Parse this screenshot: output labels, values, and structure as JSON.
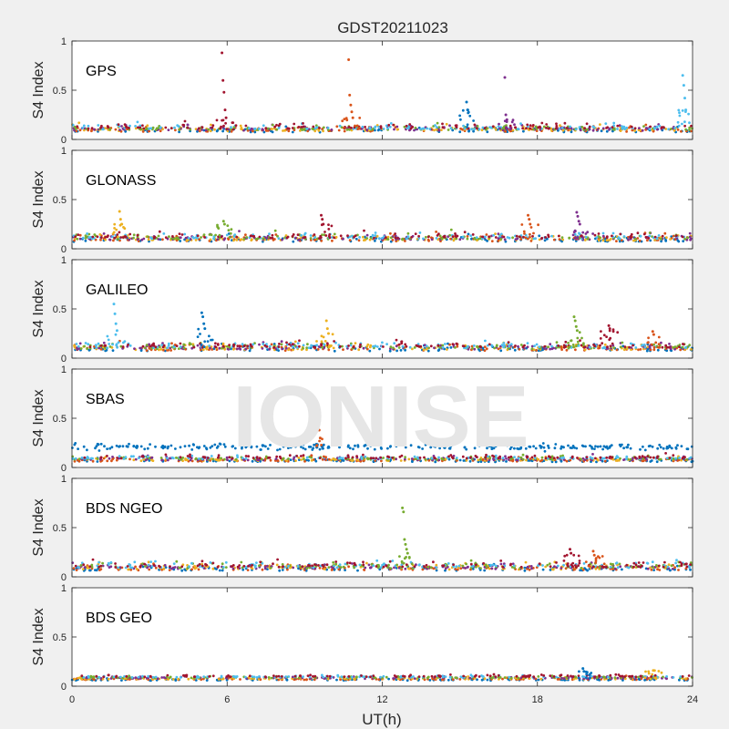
{
  "title": "GDST20211023",
  "watermark": "IONISE",
  "colors": {
    "background": "#f0f0f0",
    "axes_background": "#ffffff",
    "axis_line": "#262626",
    "text": "#262626",
    "watermark": "#e6e6e6"
  },
  "palette": [
    "#0072BD",
    "#D95319",
    "#EDB120",
    "#7E2F8E",
    "#77AC30",
    "#4DBEEE",
    "#A2142F"
  ],
  "chart_data": {
    "type": "scatter",
    "xlabel": "UT(h)",
    "ylabel": "S4 Index",
    "xlim": [
      0,
      24
    ],
    "ylim": [
      0,
      1
    ],
    "xticks": [
      "0",
      "6",
      "12",
      "18",
      "24"
    ],
    "yticks": [
      "0",
      "0.5",
      "1"
    ],
    "grid": false,
    "panels": [
      {
        "label": "GPS",
        "baseline": 0.1,
        "noise": 0.03,
        "spikes": [
          {
            "x": 5.9,
            "values": [
              0.88,
              0.6,
              0.48,
              0.3,
              0.22
            ]
          },
          {
            "x": 10.8,
            "values": [
              0.81,
              0.45,
              0.35,
              0.28,
              0.22
            ]
          },
          {
            "x": 16.8,
            "values": [
              0.63,
              0.25,
              0.2
            ]
          },
          {
            "x": 23.7,
            "values": [
              0.65,
              0.55,
              0.42,
              0.3
            ]
          },
          {
            "x": 15.3,
            "values": [
              0.38,
              0.3
            ]
          }
        ]
      },
      {
        "label": "GLONASS",
        "baseline": 0.1,
        "noise": 0.035,
        "spikes": [
          {
            "x": 1.9,
            "values": [
              0.38,
              0.3,
              0.25
            ]
          },
          {
            "x": 5.9,
            "values": [
              0.28,
              0.25
            ]
          },
          {
            "x": 9.7,
            "values": [
              0.34,
              0.3,
              0.25
            ]
          },
          {
            "x": 17.7,
            "values": [
              0.34,
              0.3,
              0.25
            ]
          },
          {
            "x": 19.6,
            "values": [
              0.37,
              0.33,
              0.28,
              0.25
            ]
          }
        ]
      },
      {
        "label": "GALILEO",
        "baseline": 0.1,
        "noise": 0.035,
        "spikes": [
          {
            "x": 1.7,
            "values": [
              0.55,
              0.45,
              0.35,
              0.28
            ]
          },
          {
            "x": 5.1,
            "values": [
              0.46,
              0.42,
              0.35,
              0.3
            ]
          },
          {
            "x": 9.9,
            "values": [
              0.38,
              0.3,
              0.25
            ]
          },
          {
            "x": 19.5,
            "values": [
              0.42,
              0.38,
              0.32,
              0.28
            ]
          },
          {
            "x": 20.8,
            "values": [
              0.33,
              0.3
            ]
          },
          {
            "x": 22.5,
            "values": [
              0.27,
              0.24
            ]
          }
        ]
      },
      {
        "label": "SBAS",
        "baseline": 0.08,
        "noise": 0.02,
        "band": {
          "value": 0.21,
          "noise": 0.025
        },
        "spikes": [
          {
            "x": 9.6,
            "values": [
              0.38,
              0.3
            ]
          }
        ]
      },
      {
        "label": "BDS NGEO",
        "baseline": 0.09,
        "noise": 0.035,
        "spikes": [
          {
            "x": 12.9,
            "values": [
              0.7,
              0.66,
              0.38,
              0.33,
              0.28,
              0.24
            ]
          },
          {
            "x": 19.3,
            "values": [
              0.28,
              0.24
            ]
          },
          {
            "x": 20.2,
            "values": [
              0.26,
              0.22
            ]
          }
        ]
      },
      {
        "label": "BDS GEO",
        "baseline": 0.08,
        "noise": 0.012,
        "spikes": [
          {
            "x": 19.8,
            "values": [
              0.18,
              0.15
            ]
          },
          {
            "x": 22.5,
            "values": [
              0.16
            ]
          }
        ]
      }
    ]
  }
}
